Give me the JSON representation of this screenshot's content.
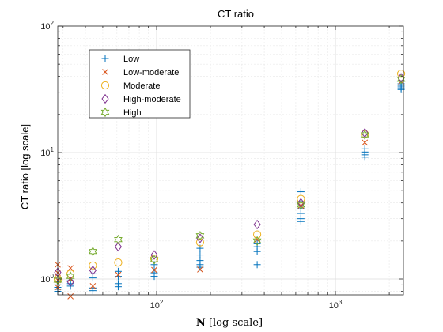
{
  "chart_data": {
    "type": "scatter",
    "title": "CT ratio",
    "xlabel_bold": "N",
    "xlabel_rest": " [log scale]",
    "ylabel": "CT ratio [log scale]",
    "xscale": "log",
    "yscale": "log",
    "xlim": [
      28,
      2400
    ],
    "ylim": [
      0.75,
      100
    ],
    "x_ticks": [
      {
        "value": 100,
        "base": "10",
        "exp": "2"
      },
      {
        "value": 1000,
        "base": "10",
        "exp": "3"
      }
    ],
    "y_ticks": [
      {
        "value": 1,
        "base": "10",
        "exp": "0"
      },
      {
        "value": 10,
        "base": "10",
        "exp": "1"
      },
      {
        "value": 100,
        "base": "10",
        "exp": "2"
      }
    ],
    "grid": true,
    "minor_grid": true,
    "legend_position": "top-left",
    "series": [
      {
        "name": "Low",
        "marker": "plus",
        "color": "#0072BD",
        "points": [
          [
            28,
            0.95
          ],
          [
            28,
            0.9
          ],
          [
            28,
            0.86
          ],
          [
            28,
            0.83
          ],
          [
            28,
            0.8
          ],
          [
            33,
            0.97
          ],
          [
            33,
            0.92
          ],
          [
            33,
            0.88
          ],
          [
            44,
            1.1
          ],
          [
            44,
            1.02
          ],
          [
            44,
            0.85
          ],
          [
            44,
            0.81
          ],
          [
            61,
            1.15
          ],
          [
            61,
            1.05
          ],
          [
            61,
            0.92
          ],
          [
            61,
            0.87
          ],
          [
            97,
            1.3
          ],
          [
            97,
            1.18
          ],
          [
            97,
            1.12
          ],
          [
            97,
            1.05
          ],
          [
            175,
            1.75
          ],
          [
            175,
            1.55
          ],
          [
            175,
            1.4
          ],
          [
            175,
            1.3
          ],
          [
            175,
            1.24
          ],
          [
            365,
            1.9
          ],
          [
            365,
            1.8
          ],
          [
            365,
            1.65
          ],
          [
            365,
            1.3
          ],
          [
            641,
            4.9
          ],
          [
            641,
            4.1
          ],
          [
            641,
            3.6
          ],
          [
            641,
            3.3
          ],
          [
            641,
            3.0
          ],
          [
            641,
            2.85
          ],
          [
            1460,
            10.7
          ],
          [
            1460,
            10.1
          ],
          [
            1460,
            9.6
          ],
          [
            1460,
            9.2
          ],
          [
            2330,
            35.0
          ],
          [
            2330,
            33.5
          ],
          [
            2330,
            32.5
          ],
          [
            2330,
            31.5
          ]
        ]
      },
      {
        "name": "Low-moderate",
        "marker": "x",
        "color": "#D95319",
        "points": [
          [
            28,
            1.3
          ],
          [
            28,
            1.12
          ],
          [
            28,
            0.98
          ],
          [
            28,
            0.86
          ],
          [
            33,
            1.22
          ],
          [
            33,
            1.0
          ],
          [
            33,
            0.73
          ],
          [
            44,
            0.88
          ],
          [
            61,
            1.08
          ],
          [
            97,
            1.18
          ],
          [
            175,
            1.19
          ],
          [
            365,
            2.05
          ],
          [
            641,
            3.8
          ],
          [
            1460,
            12.0
          ],
          [
            2330,
            36.5
          ]
        ]
      },
      {
        "name": "Moderate",
        "marker": "circle",
        "color": "#EDB120",
        "points": [
          [
            28,
            1.0
          ],
          [
            33,
            1.1
          ],
          [
            44,
            1.28
          ],
          [
            61,
            1.35
          ],
          [
            97,
            1.45
          ],
          [
            175,
            1.95
          ],
          [
            365,
            2.25
          ],
          [
            641,
            4.3
          ],
          [
            1460,
            14.0
          ],
          [
            2330,
            42.0
          ]
        ]
      },
      {
        "name": "High-moderate",
        "marker": "diamond",
        "color": "#7E2F8E",
        "points": [
          [
            28,
            1.13
          ],
          [
            33,
            0.95
          ],
          [
            44,
            1.17
          ],
          [
            61,
            1.8
          ],
          [
            97,
            1.55
          ],
          [
            175,
            2.1
          ],
          [
            365,
            2.7
          ],
          [
            641,
            4.0
          ],
          [
            1460,
            14.3
          ],
          [
            2330,
            39.0
          ]
        ]
      },
      {
        "name": "High",
        "marker": "hexagram",
        "color": "#77AC30",
        "points": [
          [
            28,
            0.98
          ],
          [
            33,
            1.05
          ],
          [
            44,
            1.65
          ],
          [
            61,
            2.05
          ],
          [
            97,
            1.42
          ],
          [
            175,
            2.2
          ],
          [
            365,
            2.0
          ],
          [
            641,
            3.85
          ],
          [
            1460,
            13.8
          ],
          [
            2330,
            38.0
          ]
        ]
      }
    ]
  }
}
